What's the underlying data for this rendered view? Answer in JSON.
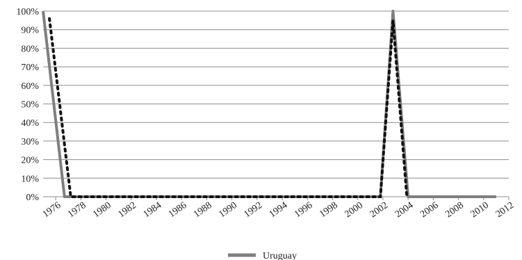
{
  "chart_data": {
    "type": "line",
    "title": "",
    "xlabel": "",
    "ylabel": "",
    "ylim": [
      0,
      100
    ],
    "y_ticks": [
      "0%",
      "10%",
      "20%",
      "30%",
      "40%",
      "50%",
      "60%",
      "70%",
      "80%",
      "90%",
      "100%"
    ],
    "x_ticks": [
      "1976",
      "1978",
      "1980",
      "1982",
      "1984",
      "1986",
      "1988",
      "1990",
      "1992",
      "1994",
      "1996",
      "1998",
      "2000",
      "2002",
      "2004",
      "2006",
      "2008",
      "2010",
      "2012"
    ],
    "xlim": [
      1975,
      2012
    ],
    "grid": true,
    "legend_position": "bottom",
    "series": [
      {
        "name": "Uruguay",
        "style": "solid",
        "color": "#7f7f7f",
        "points": [
          {
            "x": 1975,
            "y": 100
          },
          {
            "x": 1976.7,
            "y": 0
          },
          {
            "x": 2001.8,
            "y": 0
          },
          {
            "x": 2002.8,
            "y": 100
          },
          {
            "x": 2004,
            "y": 0
          },
          {
            "x": 2011,
            "y": 0
          }
        ]
      },
      {
        "style": "dotted",
        "color": "#111111",
        "points": [
          {
            "x": 1975.5,
            "y": 96
          },
          {
            "x": 1977.2,
            "y": 0
          },
          {
            "x": 2001.8,
            "y": 0
          },
          {
            "x": 2002.8,
            "y": 95
          },
          {
            "x": 2003.9,
            "y": 0
          }
        ]
      }
    ]
  }
}
